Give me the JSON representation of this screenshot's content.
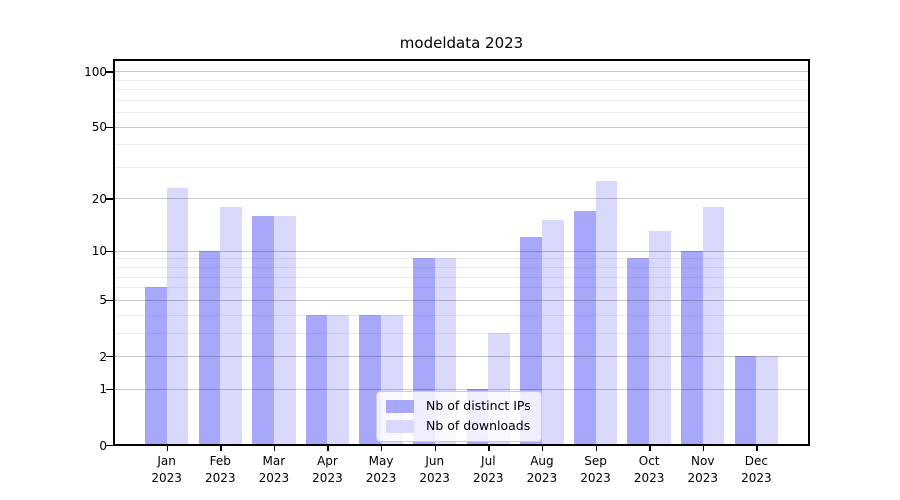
{
  "title": "modeldata 2023",
  "chart_data": {
    "type": "bar",
    "title": "modeldata 2023",
    "categories": [
      "Jan 2023",
      "Feb 2023",
      "Mar 2023",
      "Apr 2023",
      "May 2023",
      "Jun 2023",
      "Jul 2023",
      "Aug 2023",
      "Sep 2023",
      "Oct 2023",
      "Nov 2023",
      "Dec 2023"
    ],
    "series": [
      {
        "name": "Nb of distinct IPs",
        "color": "#a8a8fa",
        "values": [
          6,
          10,
          16,
          4,
          4,
          9,
          1,
          12,
          17,
          9,
          10,
          2
        ]
      },
      {
        "name": "Nb of downloads",
        "color": "#d9d9fb",
        "values": [
          23,
          18,
          16,
          4,
          4,
          9,
          3,
          15,
          25,
          13,
          18,
          2
        ]
      }
    ],
    "xlabel": "",
    "ylabel": "",
    "yscale": "symlog (position proportional to log(1+y))",
    "ylim": [
      0,
      116
    ],
    "ytick_labels": [
      "100",
      "50",
      "20",
      "10",
      "5",
      "2",
      "1",
      "0"
    ],
    "ytick_values": [
      100,
      50,
      20,
      10,
      5,
      2,
      1,
      0
    ],
    "grid": {
      "enabled": true,
      "major_values": [
        1,
        2,
        5,
        10,
        20,
        50,
        100
      ],
      "minor_values": [
        3,
        4,
        6,
        7,
        8,
        9,
        30,
        40,
        60,
        70,
        80,
        90
      ]
    },
    "legend_position": "lower center"
  },
  "colors": {
    "bar_distinct_ips": "#a8a8fa",
    "bar_downloads": "#d9d9fb",
    "grid_major": "#c7c7c7",
    "grid_minor": "#ebebeb",
    "spine": "#000000",
    "legend_border": "#cccccc"
  }
}
